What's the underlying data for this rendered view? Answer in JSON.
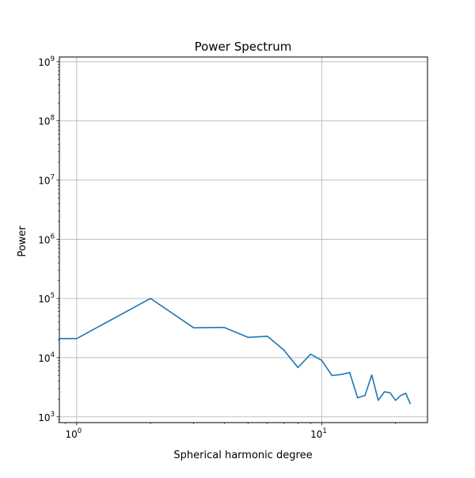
{
  "chart_data": {
    "type": "line",
    "title": "Power Spectrum",
    "xlabel": "Spherical harmonic degree",
    "ylabel": "Power",
    "xscale": "log",
    "yscale": "log",
    "xlim": [
      0.85,
      27
    ],
    "ylim": [
      800,
      1200000000
    ],
    "grid": true,
    "x_ticks": [
      {
        "value": 1,
        "base": "10",
        "exp": "0"
      },
      {
        "value": 10,
        "base": "10",
        "exp": "1"
      }
    ],
    "y_ticks": [
      {
        "value": 1000,
        "base": "10",
        "exp": "3"
      },
      {
        "value": 10000,
        "base": "10",
        "exp": "4"
      },
      {
        "value": 100000,
        "base": "10",
        "exp": "5"
      },
      {
        "value": 1000000,
        "base": "10",
        "exp": "6"
      },
      {
        "value": 10000000,
        "base": "10",
        "exp": "7"
      },
      {
        "value": 100000000,
        "base": "10",
        "exp": "8"
      },
      {
        "value": 1000000000,
        "base": "10",
        "exp": "9"
      }
    ],
    "series": [
      {
        "color": "#1f77b4",
        "x": [
          0,
          1,
          2,
          3,
          4,
          5,
          6,
          7,
          8,
          9,
          10,
          11,
          12,
          13,
          14,
          15,
          16,
          17,
          18,
          19,
          20,
          21,
          22,
          23
        ],
        "y": [
          21000,
          21000,
          100000,
          32000,
          32500,
          22000,
          23000,
          13500,
          6800,
          11500,
          9000,
          5000,
          5200,
          5600,
          2100,
          2300,
          5100,
          1900,
          2650,
          2550,
          1900,
          2300,
          2500,
          1650
        ]
      }
    ]
  }
}
